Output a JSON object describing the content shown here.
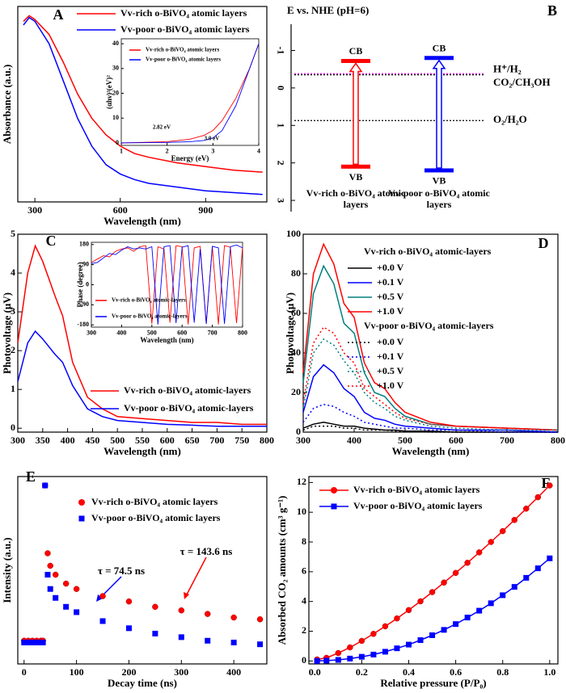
{
  "chart_data": [
    {
      "type": "line",
      "label": "A",
      "xlabel": "Wavelength (nm)",
      "ylabel": "Absorbance (a.u.)",
      "xlim": [
        240,
        1115
      ],
      "ylim": [
        0,
        1.05
      ],
      "xticks": [
        300,
        600,
        900
      ],
      "x": [
        260,
        280,
        300,
        350,
        400,
        450,
        500,
        550,
        600,
        650,
        700,
        800,
        900,
        1000,
        1100
      ],
      "series": [
        {
          "name": "Vv-rich o-BiVO₄ atomic layers",
          "color": "#ff0000",
          "values": [
            0.97,
            1.0,
            0.98,
            0.9,
            0.75,
            0.58,
            0.45,
            0.36,
            0.3,
            0.26,
            0.24,
            0.21,
            0.19,
            0.17,
            0.16
          ]
        },
        {
          "name": "Vv-poor o-BiVO₄ atomic layers",
          "color": "#0000ff",
          "values": [
            0.95,
            0.99,
            0.97,
            0.85,
            0.65,
            0.45,
            0.3,
            0.2,
            0.15,
            0.12,
            0.1,
            0.08,
            0.06,
            0.05,
            0.04
          ]
        }
      ]
    },
    {
      "type": "line",
      "xlabel": "Energy (eV)",
      "ylabel": "(αhν)²(eV)²",
      "xlim": [
        1,
        4
      ],
      "ylim": [
        -1,
        42
      ],
      "xticks": [
        1,
        2,
        3,
        4
      ],
      "yticks": [
        0,
        10,
        20,
        30,
        40
      ],
      "x": [
        1,
        2,
        2.5,
        2.8,
        3,
        3.2,
        3.5,
        3.8,
        4
      ],
      "series": [
        {
          "name": "Vv-rich o-BiVO₄ atomic layers",
          "color": "#ff0000",
          "values": [
            0,
            0.5,
            1.5,
            3,
            5,
            9,
            18,
            30,
            40
          ]
        },
        {
          "name": "Vv-poor o-BiVO₄ atomic layers",
          "color": "#0000ff",
          "values": [
            0,
            0.2,
            0.5,
            1,
            2,
            5,
            15,
            30,
            40
          ]
        }
      ],
      "annotations": [
        {
          "text": "2.82 eV",
          "color": "#ff0000"
        },
        {
          "text": "3.0 eV",
          "color": "#0000ff"
        }
      ]
    },
    {
      "type": "energy-diagram",
      "label": "B",
      "title": "E vs. NHE (pH=6)",
      "ylim": [
        -1.7,
        3.3
      ],
      "inverted": true,
      "yticks": [
        -1,
        0,
        1,
        2,
        3
      ],
      "levels": [
        {
          "name": "Vv-rich o-BiVO₄ atomic layers",
          "color": "#ff0000",
          "cb_label": "CB",
          "vb_label": "VB",
          "cb": -0.72,
          "vb": 2.1
        },
        {
          "name": "Vv-poor o-BiVO₄ atomic layers",
          "color": "#0000ff",
          "cb_label": "CB",
          "vb_label": "VB",
          "cb": -0.8,
          "vb": 2.2
        }
      ],
      "references": [
        {
          "name": "H⁺/H₂",
          "color": "#000000",
          "value": -0.35
        },
        {
          "name": "CO₂/CH₃OH",
          "color": "#ee00ee",
          "value": -0.38
        },
        {
          "name": "O₂/H₂O",
          "color": "#000000",
          "value": 0.87
        }
      ]
    },
    {
      "type": "line",
      "label": "C",
      "xlabel": "Wavelength (nm)",
      "ylabel": "Photovoltage (μV)",
      "xlim": [
        300,
        800
      ],
      "ylim": [
        -0.1,
        5
      ],
      "xticks": [
        300,
        350,
        400,
        450,
        500,
        550,
        600,
        650,
        700,
        750,
        800
      ],
      "yticks": [
        0,
        1,
        2,
        3,
        4,
        5
      ],
      "x": [
        300,
        320,
        335,
        350,
        375,
        390,
        410,
        440,
        470,
        500,
        550,
        600,
        650,
        700,
        750,
        800
      ],
      "series": [
        {
          "name": "Vv-rich o-BiVO₄ atomic-layers",
          "color": "#ff0000",
          "values": [
            2.2,
            4.0,
            4.7,
            4.3,
            3.4,
            2.9,
            1.7,
            0.8,
            0.5,
            0.3,
            0.25,
            0.2,
            0.15,
            0.15,
            0.1,
            0.1
          ]
        },
        {
          "name": "Vv-poor o-BiVO₄ atomic-layers",
          "color": "#0000ff",
          "values": [
            1.2,
            2.2,
            2.5,
            2.3,
            1.9,
            1.7,
            1.1,
            0.5,
            0.3,
            0.2,
            0.15,
            0.1,
            0.08,
            0.05,
            0.05,
            0.05
          ]
        }
      ]
    },
    {
      "type": "line",
      "xlabel": "Wavelength (nm)",
      "ylabel": "Phase (degree)",
      "xlim": [
        300,
        800
      ],
      "ylim": [
        -190,
        190
      ],
      "xticks": [
        300,
        400,
        500,
        600,
        700,
        800
      ],
      "yticks": [
        -180,
        -90,
        0,
        90,
        180
      ],
      "x": [
        300,
        320,
        340,
        360,
        380,
        400,
        420,
        440,
        460,
        480,
        500,
        520,
        540,
        560,
        580,
        600,
        620,
        640,
        660,
        680,
        700,
        720,
        740,
        760,
        780,
        800
      ],
      "series": [
        {
          "name": "Vv-rich o-BiVO₄ atomic-layers",
          "color": "#ff0000",
          "values": [
            100,
            115,
            130,
            125,
            150,
            160,
            165,
            150,
            170,
            175,
            -175,
            170,
            160,
            -170,
            175,
            170,
            -178,
            165,
            172,
            -175,
            170,
            -178,
            175,
            168,
            -172,
            170
          ]
        },
        {
          "name": "Vv-poor o-BiVO₄ atomic-layers",
          "color": "#0000ff",
          "values": [
            95,
            100,
            120,
            140,
            135,
            155,
            170,
            160,
            165,
            160,
            170,
            -178,
            170,
            175,
            -172,
            168,
            175,
            -170,
            160,
            -176,
            172,
            165,
            -175,
            170,
            178,
            165
          ]
        }
      ]
    },
    {
      "type": "line",
      "label": "D",
      "xlabel": "Wavelength (nm)",
      "ylabel": "Photovoltage (μV)",
      "xlim": [
        300,
        800
      ],
      "ylim": [
        0,
        100
      ],
      "xticks": [
        300,
        400,
        500,
        600,
        700,
        800
      ],
      "yticks": [
        0,
        20,
        40,
        60,
        80,
        100
      ],
      "x": [
        300,
        320,
        340,
        360,
        380,
        400,
        420,
        440,
        460,
        480,
        500,
        550,
        600,
        700,
        800
      ],
      "groups": [
        {
          "name": "Vv-rich o-BiVO₄ atomic-layers",
          "series": [
            {
              "name": "+0.0 V",
              "color": "#000000",
              "values": [
                2,
                4,
                5,
                4,
                3,
                3,
                2,
                1.5,
                1,
                1,
                0.5,
                0.5,
                0,
                0,
                0
              ]
            },
            {
              "name": "+0.1 V",
              "color": "#0000ff",
              "values": [
                10,
                28,
                34,
                30,
                22,
                18,
                10,
                7,
                6,
                4,
                3,
                2,
                1,
                1,
                0
              ]
            },
            {
              "name": "+0.5 V",
              "color": "#008080",
              "values": [
                25,
                70,
                84,
                75,
                55,
                50,
                30,
                20,
                18,
                12,
                8,
                4,
                3,
                2,
                1
              ]
            },
            {
              "name": "+1.0 V",
              "color": "#ff0000",
              "values": [
                30,
                80,
                95,
                85,
                65,
                58,
                35,
                25,
                22,
                15,
                10,
                5,
                3,
                2,
                1
              ]
            }
          ]
        },
        {
          "name": "Vv-poor o-BiVO₄ atomic-layers",
          "series": [
            {
              "name": "+0.0 V",
              "color": "#000000",
              "dash": "dotted",
              "values": [
                1,
                3,
                3,
                3,
                2,
                2,
                1,
                1,
                1,
                0.5,
                0.5,
                0,
                0,
                0,
                0
              ]
            },
            {
              "name": "+0.1 V",
              "color": "#0000ff",
              "dash": "dotted",
              "values": [
                5,
                12,
                14,
                13,
                10,
                8,
                5,
                4,
                3,
                2,
                2,
                1,
                1,
                0,
                0
              ]
            },
            {
              "name": "+0.5 V",
              "color": "#008080",
              "dash": "dotted",
              "values": [
                12,
                40,
                47,
                44,
                36,
                30,
                20,
                15,
                12,
                8,
                6,
                3,
                2,
                1,
                1
              ]
            },
            {
              "name": "+1.0 V",
              "color": "#ff0000",
              "dash": "dotted",
              "values": [
                15,
                45,
                53,
                50,
                40,
                35,
                22,
                18,
                14,
                10,
                7,
                4,
                3,
                2,
                1
              ]
            }
          ]
        }
      ]
    },
    {
      "type": "scatter",
      "label": "E",
      "xlabel": "Decay time (ns)",
      "ylabel": "Intensity (a.u.)",
      "xlim": [
        -12,
        463
      ],
      "ylim": [
        0,
        1.05
      ],
      "xticks": [
        0,
        100,
        200,
        300,
        400
      ],
      "x": [
        0,
        8,
        16,
        24,
        32,
        36,
        40,
        45,
        50,
        60,
        80,
        100,
        150,
        200,
        250,
        300,
        350,
        400,
        450
      ],
      "series": [
        {
          "name": "Vv-rich o-BiVO₄ atomic layers",
          "color": "#ff0000",
          "marker": "circle",
          "values": [
            0.13,
            0.13,
            0.13,
            0.13,
            0.13,
            0.13,
            1.0,
            0.62,
            0.55,
            0.5,
            0.45,
            0.42,
            0.38,
            0.35,
            0.32,
            0.3,
            0.28,
            0.26,
            0.25
          ]
        },
        {
          "name": "Vv-poor o-BiVO₄ atomic layers",
          "color": "#0000ff",
          "marker": "square",
          "values": [
            0.12,
            0.12,
            0.12,
            0.12,
            0.12,
            0.12,
            1.0,
            0.5,
            0.42,
            0.37,
            0.32,
            0.29,
            0.24,
            0.2,
            0.17,
            0.15,
            0.13,
            0.12,
            0.11
          ]
        }
      ],
      "annotations": [
        {
          "text": "τ = 74.5 ns",
          "color": "#000000"
        },
        {
          "text": "τ = 143.6 ns",
          "color": "#000000"
        }
      ]
    },
    {
      "type": "line",
      "label": "F",
      "xlabel": "Relative pressure (P/P₀)",
      "ylabel": "Absorbed CO₂ amounts (cm³ g⁻¹)",
      "xlim": [
        -0.025,
        1.035
      ],
      "ylim": [
        -0.2,
        12.4
      ],
      "xticks": [
        {
          "value": 0,
          "label": "0.0"
        },
        {
          "value": 0.2,
          "label": "0.2"
        },
        {
          "value": 0.4,
          "label": "0.4"
        },
        {
          "value": 0.6,
          "label": "0.6"
        },
        {
          "value": 0.8,
          "label": "0.8"
        },
        {
          "value": 1,
          "label": "1.0"
        }
      ],
      "yticks": [
        0,
        2,
        4,
        6,
        8,
        10,
        12
      ],
      "x": [
        0.01,
        0.05,
        0.1,
        0.15,
        0.2,
        0.25,
        0.3,
        0.35,
        0.4,
        0.45,
        0.5,
        0.55,
        0.6,
        0.65,
        0.7,
        0.75,
        0.8,
        0.85,
        0.9,
        0.95,
        1.0
      ],
      "series": [
        {
          "name": "Vv-rich o-BiVO₄ atomic layers",
          "color": "#ff0000",
          "marker": "circle",
          "values": [
            0.1,
            0.21,
            0.53,
            0.91,
            1.35,
            1.82,
            2.33,
            2.86,
            3.42,
            4.01,
            4.63,
            5.27,
            5.92,
            6.6,
            7.3,
            8.0,
            8.73,
            9.48,
            10.24,
            11.01,
            11.8
          ]
        },
        {
          "name": "Vv-poor o-BiVO₄ atomic layers",
          "color": "#0000ff",
          "marker": "square",
          "values": [
            0.0,
            0.02,
            0.07,
            0.16,
            0.28,
            0.43,
            0.62,
            0.85,
            1.1,
            1.4,
            1.73,
            2.09,
            2.48,
            2.92,
            3.38,
            3.88,
            4.42,
            4.98,
            5.59,
            6.23,
            6.9
          ]
        }
      ]
    }
  ]
}
